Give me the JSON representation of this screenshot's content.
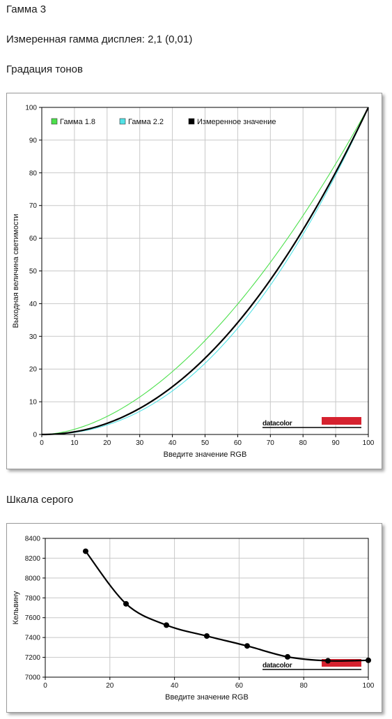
{
  "page": {
    "title": "Гамма 3",
    "measured_gamma": "Измеренная гамма дисплея: 2,1 (0,01)",
    "tone_heading": "Градация тонов",
    "gray_heading": "Шкала серого"
  },
  "logo": {
    "text": "datacolor",
    "bar_color": "#d6222f"
  },
  "colors": {
    "gamma18": "#4ce04c",
    "gamma22": "#52e2e6",
    "measured": "#000000",
    "grid": "#c8c8c8"
  },
  "chart_data": [
    {
      "type": "line",
      "title": "",
      "xlabel": "Введите значение RGB",
      "ylabel": "Выходная величина светимости",
      "xlim": [
        0,
        100
      ],
      "ylim": [
        0,
        100
      ],
      "xticks": [
        "0",
        "10",
        "20",
        "30",
        "40",
        "50",
        "60",
        "70",
        "80",
        "90",
        "100"
      ],
      "yticks": [
        "0",
        "10",
        "20",
        "30",
        "40",
        "50",
        "60",
        "70",
        "80",
        "90",
        "100"
      ],
      "grid": true,
      "legend": "top-left",
      "series": [
        {
          "name": "Гамма 1.8",
          "color": "#4ce04c",
          "gamma": 1.8,
          "x": [
            0,
            5,
            10,
            15,
            20,
            25,
            30,
            35,
            40,
            45,
            50,
            55,
            60,
            65,
            70,
            75,
            80,
            85,
            90,
            95,
            100
          ],
          "y": [
            0,
            0.5,
            1.6,
            3.3,
            5.5,
            8.2,
            11.4,
            15.1,
            19.2,
            23.8,
            28.7,
            34.0,
            39.9,
            46.0,
            52.6,
            59.6,
            66.9,
            74.6,
            82.7,
            91.2,
            100
          ]
        },
        {
          "name": "Гамма 2.2",
          "color": "#52e2e6",
          "gamma": 2.2,
          "x": [
            0,
            5,
            10,
            15,
            20,
            25,
            30,
            35,
            40,
            45,
            50,
            55,
            60,
            65,
            70,
            75,
            80,
            85,
            90,
            95,
            100
          ],
          "y": [
            0,
            0.1,
            0.6,
            1.5,
            2.9,
            4.7,
            7.1,
            9.9,
            13.3,
            17.3,
            21.8,
            26.8,
            32.5,
            38.7,
            45.6,
            53.1,
            61.2,
            69.9,
            79.3,
            89.3,
            100
          ]
        },
        {
          "name": "Измеренное значение",
          "color": "#000000",
          "gamma": 2.1,
          "x": [
            0,
            5,
            10,
            15,
            20,
            25,
            30,
            35,
            40,
            45,
            50,
            55,
            60,
            65,
            70,
            75,
            80,
            85,
            90,
            95,
            100
          ],
          "y": [
            0,
            0.2,
            0.8,
            1.9,
            3.4,
            5.4,
            8.0,
            11.0,
            14.6,
            18.7,
            23.3,
            28.5,
            34.2,
            40.5,
            47.3,
            54.7,
            62.6,
            71.1,
            80.1,
            89.8,
            100
          ]
        }
      ]
    },
    {
      "type": "line",
      "title": "",
      "xlabel": "Введите значение RGB",
      "ylabel": "Кельвину",
      "xlim": [
        0,
        100
      ],
      "ylim": [
        7000,
        8400
      ],
      "xticks": [
        "0",
        "20",
        "40",
        "60",
        "80",
        "100"
      ],
      "yticks": [
        "7000",
        "7200",
        "7400",
        "7600",
        "7800",
        "8000",
        "8200",
        "8400"
      ],
      "grid": true,
      "series": [
        {
          "name": "",
          "color": "#000000",
          "x": [
            12.5,
            25,
            37.5,
            50,
            62.5,
            75,
            87.5,
            100
          ],
          "y": [
            8270,
            7740,
            7525,
            7415,
            7315,
            7205,
            7165,
            7170
          ]
        }
      ]
    }
  ]
}
